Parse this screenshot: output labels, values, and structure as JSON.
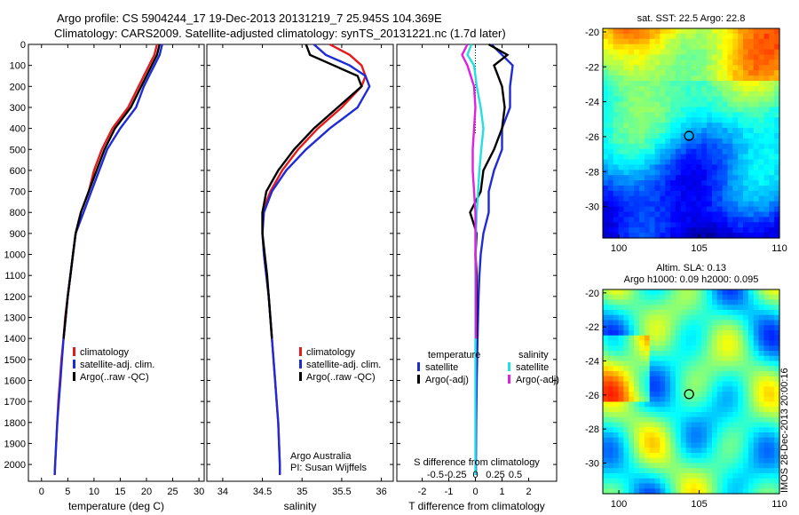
{
  "titles": {
    "line1": "Argo profile: CS 5904244_17 19-Dec-2013 20131219_7 25.945S 104.369E",
    "line2": "Climatology: CARS2009. Satellite-adjusted climatology: synTS_20131221.nc (1.7d later)"
  },
  "colors": {
    "climatology": "#e41a1c",
    "satellite": "#1f2bd6",
    "argo": "#000000",
    "cyan": "#22e0e0",
    "magenta": "#e020e0"
  },
  "chart_data": [
    {
      "type": "line",
      "xlabel": "temperature (deg C)",
      "ylabel": "",
      "xlim": [
        -2.5,
        31
      ],
      "ylim": [
        0,
        2080
      ],
      "xticks": [
        0,
        5,
        10,
        15,
        20,
        25,
        30
      ],
      "yticks": [
        0,
        100,
        200,
        300,
        400,
        500,
        600,
        700,
        800,
        900,
        1000,
        1100,
        1200,
        1300,
        1400,
        1500,
        1600,
        1700,
        1800,
        1900,
        2000
      ],
      "legend": [
        "climatology",
        "satellite-adj. clim.",
        "Argo(..raw -QC)"
      ],
      "series": [
        {
          "name": "climatology",
          "color": "#e41a1c",
          "points": [
            [
              22,
              0
            ],
            [
              21.5,
              50
            ],
            [
              20.5,
              100
            ],
            [
              19.5,
              150
            ],
            [
              18.5,
              200
            ],
            [
              16.5,
              300
            ],
            [
              15,
              350
            ],
            [
              13.5,
              400
            ],
            [
              11.5,
              500
            ],
            [
              10,
              600
            ],
            [
              9,
              700
            ],
            [
              7.5,
              800
            ],
            [
              6.5,
              900
            ],
            [
              6,
              1000
            ],
            [
              5.5,
              1100
            ],
            [
              5,
              1200
            ],
            [
              4.5,
              1300
            ],
            [
              4.2,
              1400
            ],
            [
              3.8,
              1500
            ],
            [
              3.5,
              1600
            ],
            [
              3.2,
              1700
            ],
            [
              3,
              1800
            ],
            [
              2.8,
              1900
            ],
            [
              2.6,
              2000
            ],
            [
              2.5,
              2050
            ]
          ]
        },
        {
          "name": "satellite-adj. clim.",
          "color": "#1f2bd6",
          "points": [
            [
              23,
              0
            ],
            [
              22.5,
              50
            ],
            [
              21.5,
              100
            ],
            [
              20.5,
              150
            ],
            [
              19.5,
              200
            ],
            [
              18,
              300
            ],
            [
              16.5,
              350
            ],
            [
              15,
              400
            ],
            [
              12.5,
              500
            ],
            [
              11,
              600
            ],
            [
              9.5,
              700
            ],
            [
              8,
              800
            ],
            [
              6.5,
              900
            ],
            [
              6,
              1000
            ],
            [
              5.5,
              1100
            ],
            [
              5,
              1200
            ],
            [
              4.6,
              1300
            ],
            [
              4.2,
              1400
            ],
            [
              3.9,
              1500
            ],
            [
              3.6,
              1600
            ],
            [
              3.3,
              1700
            ],
            [
              3,
              1800
            ],
            [
              2.8,
              1900
            ],
            [
              2.6,
              2000
            ],
            [
              2.5,
              2050
            ]
          ]
        },
        {
          "name": "Argo(..raw -QC)",
          "color": "#000000",
          "points": [
            [
              22.5,
              0
            ],
            [
              22,
              50
            ],
            [
              21,
              100
            ],
            [
              20,
              150
            ],
            [
              19,
              200
            ],
            [
              17,
              300
            ],
            [
              15.5,
              350
            ],
            [
              14,
              400
            ],
            [
              12,
              500
            ],
            [
              10.5,
              600
            ],
            [
              9,
              700
            ],
            [
              7.5,
              800
            ],
            [
              6.5,
              900
            ],
            [
              6,
              1000
            ],
            [
              5.5,
              1100
            ],
            [
              5,
              1200
            ],
            [
              4.6,
              1300
            ],
            [
              4.2,
              1400
            ]
          ]
        }
      ]
    },
    {
      "type": "line",
      "xlabel": "salinity",
      "ylabel": "",
      "xlim": [
        33.8,
        36.15
      ],
      "ylim": [
        0,
        2080
      ],
      "xticks": [
        34,
        34.5,
        35,
        35.5,
        36
      ],
      "legend": [
        "climatology",
        "satellite-adj. clim.",
        "Argo(..raw -QC)"
      ],
      "annotations": [
        "Argo Australia",
        "PI: Susan Wijffels"
      ],
      "series": [
        {
          "name": "climatology",
          "color": "#e41a1c",
          "points": [
            [
              35.35,
              0
            ],
            [
              35.6,
              50
            ],
            [
              35.75,
              100
            ],
            [
              35.8,
              150
            ],
            [
              35.75,
              200
            ],
            [
              35.5,
              300
            ],
            [
              35.2,
              400
            ],
            [
              34.95,
              500
            ],
            [
              34.75,
              600
            ],
            [
              34.6,
              700
            ],
            [
              34.5,
              800
            ],
            [
              34.5,
              900
            ],
            [
              34.52,
              1000
            ],
            [
              34.55,
              1100
            ],
            [
              34.58,
              1200
            ],
            [
              34.6,
              1300
            ],
            [
              34.62,
              1400
            ],
            [
              34.64,
              1500
            ],
            [
              34.66,
              1600
            ],
            [
              34.68,
              1700
            ],
            [
              34.7,
              1800
            ],
            [
              34.71,
              1900
            ],
            [
              34.72,
              2000
            ],
            [
              34.72,
              2050
            ]
          ]
        },
        {
          "name": "satellite-adj. clim.",
          "color": "#1f2bd6",
          "points": [
            [
              35.15,
              0
            ],
            [
              35.3,
              50
            ],
            [
              35.6,
              100
            ],
            [
              35.8,
              150
            ],
            [
              35.85,
              200
            ],
            [
              35.7,
              300
            ],
            [
              35.35,
              400
            ],
            [
              35.05,
              500
            ],
            [
              34.8,
              600
            ],
            [
              34.62,
              700
            ],
            [
              34.52,
              800
            ],
            [
              34.5,
              900
            ],
            [
              34.52,
              1000
            ],
            [
              34.55,
              1100
            ],
            [
              34.58,
              1200
            ],
            [
              34.6,
              1300
            ],
            [
              34.62,
              1400
            ],
            [
              34.64,
              1500
            ],
            [
              34.66,
              1600
            ],
            [
              34.68,
              1700
            ],
            [
              34.7,
              1800
            ],
            [
              34.71,
              1900
            ],
            [
              34.72,
              2000
            ],
            [
              34.72,
              2050
            ]
          ]
        },
        {
          "name": "Argo(..raw -QC)",
          "color": "#000000",
          "points": [
            [
              35.05,
              0
            ],
            [
              35.1,
              50
            ],
            [
              35.4,
              100
            ],
            [
              35.7,
              150
            ],
            [
              35.75,
              200
            ],
            [
              35.45,
              300
            ],
            [
              35.15,
              400
            ],
            [
              34.9,
              500
            ],
            [
              34.7,
              600
            ],
            [
              34.55,
              700
            ],
            [
              34.5,
              800
            ],
            [
              34.5,
              900
            ],
            [
              34.53,
              1000
            ],
            [
              34.56,
              1100
            ],
            [
              34.58,
              1200
            ],
            [
              34.6,
              1300
            ],
            [
              34.62,
              1400
            ]
          ]
        }
      ]
    },
    {
      "type": "line",
      "xlabel": "T difference from climatology",
      "top_label": "S difference from climatology",
      "xlim": [
        -2.95,
        3.05
      ],
      "ylim": [
        0,
        2080
      ],
      "xticks": [
        -2,
        -1,
        0,
        1,
        2
      ],
      "top_ticks": [
        -0.5,
        -0.25,
        0,
        0.25,
        0.5
      ],
      "legend_groups": [
        {
          "title": "temperature",
          "items": [
            "satellite",
            "Argo(-adj)"
          ]
        },
        {
          "title": "salinity",
          "items": [
            "satellite",
            "Argo(-adj)"
          ]
        }
      ],
      "series": [
        {
          "name": "T satellite",
          "color": "#1f2bd6",
          "points": [
            [
              0.6,
              0
            ],
            [
              1,
              50
            ],
            [
              1.4,
              100
            ],
            [
              1.3,
              200
            ],
            [
              1.3,
              300
            ],
            [
              1,
              400
            ],
            [
              1,
              500
            ],
            [
              0.7,
              600
            ],
            [
              0.5,
              700
            ],
            [
              0.5,
              800
            ],
            [
              0.3,
              900
            ],
            [
              0.2,
              1000
            ],
            [
              0.15,
              1100
            ],
            [
              0.12,
              1200
            ],
            [
              0.1,
              1300
            ],
            [
              0.08,
              1400
            ],
            [
              0.05,
              1600
            ],
            [
              0.03,
              1800
            ],
            [
              0.02,
              2000
            ],
            [
              0.02,
              2050
            ]
          ]
        },
        {
          "name": "T Argo(-adj)",
          "color": "#000000",
          "points": [
            [
              0.5,
              0
            ],
            [
              1.2,
              50
            ],
            [
              0.7,
              100
            ],
            [
              1,
              200
            ],
            [
              1.1,
              300
            ],
            [
              1,
              400
            ],
            [
              0.7,
              500
            ],
            [
              0.3,
              600
            ],
            [
              0.2,
              700
            ],
            [
              -0.2,
              800
            ],
            [
              0.05,
              900
            ],
            [
              0,
              1000
            ],
            [
              0.05,
              1100
            ],
            [
              0.05,
              1200
            ],
            [
              0.05,
              1300
            ],
            [
              0.05,
              1400
            ]
          ]
        },
        {
          "name": "S satellite",
          "color": "#22e0e0",
          "points": [
            [
              -0.15,
              0
            ],
            [
              -0.3,
              50
            ],
            [
              -0.05,
              100
            ],
            [
              0.05,
              200
            ],
            [
              0.2,
              300
            ],
            [
              0.3,
              400
            ],
            [
              0.22,
              500
            ],
            [
              0.15,
              600
            ],
            [
              0.1,
              700
            ],
            [
              0.05,
              800
            ],
            [
              0.02,
              900
            ],
            [
              0,
              1000
            ],
            [
              0,
              1200
            ],
            [
              0,
              1400
            ],
            [
              0,
              1600
            ],
            [
              0,
              1800
            ],
            [
              0,
              2000
            ],
            [
              0,
              2050
            ]
          ]
        },
        {
          "name": "S Argo(-adj)",
          "color": "#e020e0",
          "points": [
            [
              -0.3,
              0
            ],
            [
              -0.5,
              50
            ],
            [
              -0.3,
              100
            ],
            [
              -0.05,
              200
            ],
            [
              0,
              300
            ],
            [
              -0.05,
              400
            ],
            [
              -0.1,
              500
            ],
            [
              -0.1,
              600
            ],
            [
              -0.05,
              700
            ],
            [
              0,
              800
            ],
            [
              0,
              900
            ],
            [
              0,
              1000
            ],
            [
              0.02,
              1100
            ],
            [
              0.02,
              1200
            ],
            [
              0.02,
              1300
            ],
            [
              0.02,
              1400
            ]
          ]
        }
      ]
    },
    {
      "type": "heatmap",
      "title": "sat. SST: 22.5 Argo: 22.8",
      "xlim": [
        99,
        110
      ],
      "ylim": [
        -31.8,
        -19.8
      ],
      "xticks": [
        100,
        105,
        110
      ],
      "yticks": [
        -20,
        -22,
        -24,
        -26,
        -28,
        -30
      ],
      "marker": [
        104.37,
        -25.95
      ]
    },
    {
      "type": "heatmap",
      "title": "Altim. SLA: 0.13",
      "subtitle": "Argo h1000: 0.09 h2000: 0.095",
      "xlim": [
        99,
        110
      ],
      "ylim": [
        -31.8,
        -19.8
      ],
      "xticks": [
        100,
        105,
        110
      ],
      "yticks": [
        -20,
        -22,
        -24,
        -26,
        -28,
        -30
      ],
      "marker": [
        104.37,
        -25.95
      ]
    }
  ],
  "credit": "IMOS 28-Dec-2013 20:00:16"
}
